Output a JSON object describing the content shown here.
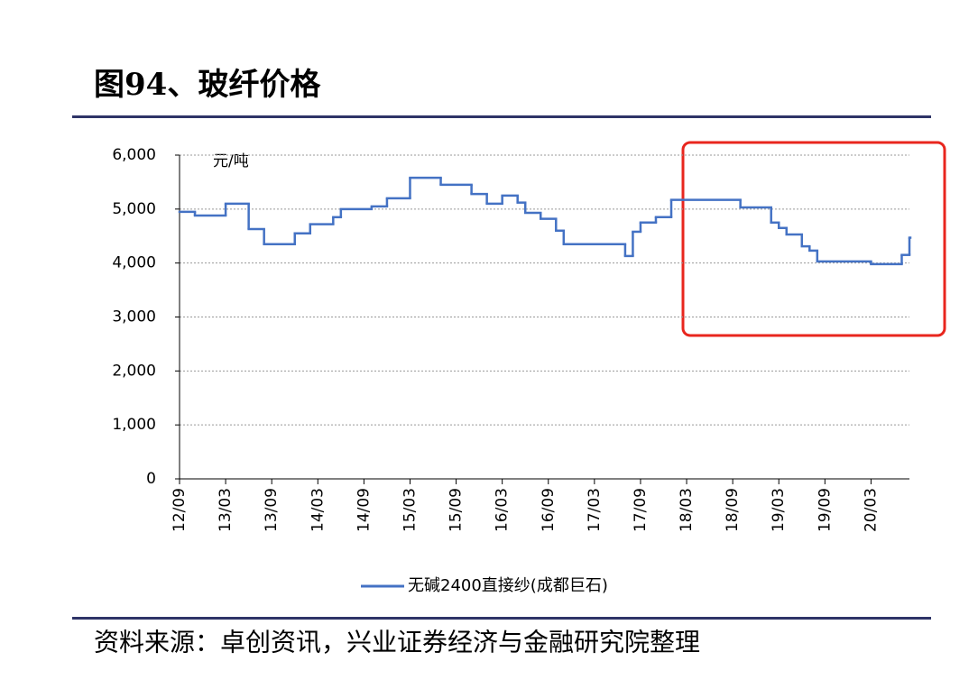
{
  "title": "图94、玻纤价格",
  "source": "资料来源：卓创资讯，兴业证券经济与金融研究院整理",
  "chart_data": {
    "type": "line",
    "unit_label": "元/吨",
    "step": true,
    "grid": true,
    "x": [
      "2012-09",
      "2012-11",
      "2013-03",
      "2013-06",
      "2013-08",
      "2013-12",
      "2014-02",
      "2014-05",
      "2014-06",
      "2014-10",
      "2014-12",
      "2015-03",
      "2015-07",
      "2015-11",
      "2016-01",
      "2016-03",
      "2016-05",
      "2016-06",
      "2016-08",
      "2016-10",
      "2016-11",
      "2017-07",
      "2017-08",
      "2017-09",
      "2017-11",
      "2018-01",
      "2018-10",
      "2019-02",
      "2019-03",
      "2019-04",
      "2019-06",
      "2019-07",
      "2019-08",
      "2020-03",
      "2020-07",
      "2020-08"
    ],
    "series": [
      {
        "name": "无碱2400直接纱(成都巨石)",
        "color": "#4472c4",
        "values": [
          4950,
          4880,
          5100,
          4630,
          4350,
          4550,
          4720,
          4850,
          5000,
          5050,
          5200,
          5580,
          5450,
          5280,
          5100,
          5250,
          5120,
          4930,
          4820,
          4600,
          4350,
          4130,
          4580,
          4750,
          4850,
          5170,
          5030,
          4750,
          4650,
          4530,
          4310,
          4230,
          4030,
          3980,
          4150,
          4470
        ]
      }
    ],
    "xlim": [
      "2012-09",
      "2020-08"
    ],
    "xticks": [
      {
        "value": "2012-09",
        "label": "12/09"
      },
      {
        "value": "2013-03",
        "label": "13/03"
      },
      {
        "value": "2013-09",
        "label": "13/09"
      },
      {
        "value": "2014-03",
        "label": "14/03"
      },
      {
        "value": "2014-09",
        "label": "14/09"
      },
      {
        "value": "2015-03",
        "label": "15/03"
      },
      {
        "value": "2015-09",
        "label": "15/09"
      },
      {
        "value": "2016-03",
        "label": "16/03"
      },
      {
        "value": "2016-09",
        "label": "16/09"
      },
      {
        "value": "2017-03",
        "label": "17/03"
      },
      {
        "value": "2017-09",
        "label": "17/09"
      },
      {
        "value": "2018-03",
        "label": "18/03"
      },
      {
        "value": "2018-09",
        "label": "18/09"
      },
      {
        "value": "2019-03",
        "label": "19/03"
      },
      {
        "value": "2019-09",
        "label": "19/09"
      },
      {
        "value": "2020-03",
        "label": "20/03"
      }
    ],
    "ylim": [
      0,
      6000
    ],
    "yticks": [
      0,
      {
        "value": 1000,
        "label": "1,000"
      },
      {
        "value": 2000,
        "label": "2,000"
      },
      {
        "value": 3000,
        "label": "3,000"
      },
      {
        "value": 4000,
        "label": "4,000"
      },
      {
        "value": 5000,
        "label": "5,000"
      },
      {
        "value": 6000,
        "label": "6,000"
      }
    ]
  }
}
